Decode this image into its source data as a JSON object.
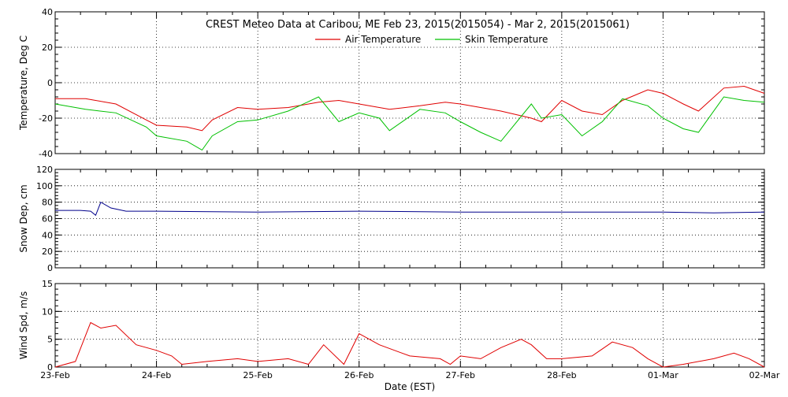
{
  "title": "CREST Meteo Data at Caribou, ME   Feb 23, 2015(2015054) - Mar  2, 2015(2015061)",
  "xlabel": "Date (EST)",
  "x_tick_labels": [
    "23-Feb",
    "24-Feb",
    "25-Feb",
    "26-Feb",
    "27-Feb",
    "28-Feb",
    "01-Mar",
    "02-Mar"
  ],
  "colors": {
    "air": "#e00000",
    "skin": "#00c000",
    "snow": "#00008b",
    "wind": "#e00000"
  },
  "chart_data": [
    {
      "type": "line",
      "ylabel": "Temperature, Deg C",
      "ylim": [
        -40,
        40
      ],
      "yticks": [
        -40,
        -20,
        0,
        20,
        40
      ],
      "xlim": [
        0,
        7
      ],
      "grid": true,
      "legend_position": "top-center",
      "series": [
        {
          "name": "Air Temperature",
          "x": [
            0,
            0.3,
            0.6,
            0.9,
            1.0,
            1.3,
            1.45,
            1.55,
            1.8,
            2.0,
            2.3,
            2.6,
            2.8,
            3.0,
            3.2,
            3.3,
            3.6,
            3.85,
            4.0,
            4.2,
            4.4,
            4.7,
            4.8,
            5.0,
            5.2,
            5.4,
            5.6,
            5.85,
            6.0,
            6.2,
            6.35,
            6.6,
            6.8,
            7.0
          ],
          "y": [
            -9,
            -9,
            -12,
            -21,
            -24,
            -25,
            -27,
            -21,
            -14,
            -15,
            -14,
            -11,
            -10,
            -12,
            -14,
            -15,
            -13,
            -11,
            -12,
            -14,
            -16,
            -20,
            -22,
            -10,
            -16,
            -18,
            -10,
            -4,
            -6,
            -12,
            -16,
            -3,
            -2,
            -6
          ]
        },
        {
          "name": "Skin Temperature",
          "x": [
            0,
            0.3,
            0.6,
            0.9,
            1.0,
            1.3,
            1.45,
            1.55,
            1.8,
            2.0,
            2.3,
            2.6,
            2.8,
            3.0,
            3.2,
            3.3,
            3.6,
            3.85,
            4.0,
            4.2,
            4.4,
            4.7,
            4.8,
            5.0,
            5.2,
            5.4,
            5.6,
            5.85,
            6.0,
            6.2,
            6.35,
            6.6,
            6.8,
            7.0
          ],
          "y": [
            -12,
            -15,
            -17,
            -25,
            -30,
            -33,
            -38,
            -30,
            -22,
            -21,
            -16,
            -8,
            -22,
            -17,
            -20,
            -27,
            -15,
            -17,
            -22,
            -28,
            -33,
            -12,
            -20,
            -18,
            -30,
            -22,
            -9,
            -13,
            -20,
            -26,
            -28,
            -8,
            -10,
            -11
          ]
        }
      ]
    },
    {
      "type": "line",
      "ylabel": "Snow Dep, cm",
      "ylim": [
        0,
        120
      ],
      "yticks": [
        0,
        20,
        40,
        60,
        80,
        100,
        120
      ],
      "xlim": [
        0,
        7
      ],
      "grid": true,
      "series": [
        {
          "x": [
            0,
            0.25,
            0.35,
            0.4,
            0.45,
            0.55,
            0.7,
            1.0,
            2.0,
            3.0,
            4.0,
            5.0,
            6.0,
            6.5,
            7.0
          ],
          "y": [
            70,
            70,
            69,
            64,
            80,
            73,
            69,
            69,
            68,
            69,
            68,
            68,
            68,
            67,
            68
          ]
        }
      ]
    },
    {
      "type": "line",
      "ylabel": "Wind Spd, m/s",
      "ylim": [
        0,
        15
      ],
      "yticks": [
        0,
        5,
        10,
        15
      ],
      "xlim": [
        0,
        7
      ],
      "grid": true,
      "series": [
        {
          "x": [
            0,
            0.2,
            0.35,
            0.45,
            0.6,
            0.8,
            1.0,
            1.15,
            1.25,
            1.5,
            1.8,
            2.0,
            2.3,
            2.5,
            2.65,
            2.85,
            3.0,
            3.2,
            3.5,
            3.8,
            3.9,
            4.0,
            4.2,
            4.4,
            4.6,
            4.7,
            4.85,
            5.0,
            5.3,
            5.5,
            5.7,
            5.85,
            6.0,
            6.2,
            6.5,
            6.7,
            6.85,
            7.0
          ],
          "y": [
            0,
            1,
            8,
            7,
            7.5,
            4,
            3,
            2,
            0.5,
            1,
            1.5,
            1,
            1.5,
            0.5,
            4,
            0.5,
            6,
            4,
            2,
            1.5,
            0.5,
            2,
            1.5,
            3.5,
            5,
            4,
            1.5,
            1.5,
            2,
            4.5,
            3.5,
            1.5,
            0,
            0.5,
            1.5,
            2.5,
            1.5,
            0
          ]
        }
      ]
    }
  ]
}
